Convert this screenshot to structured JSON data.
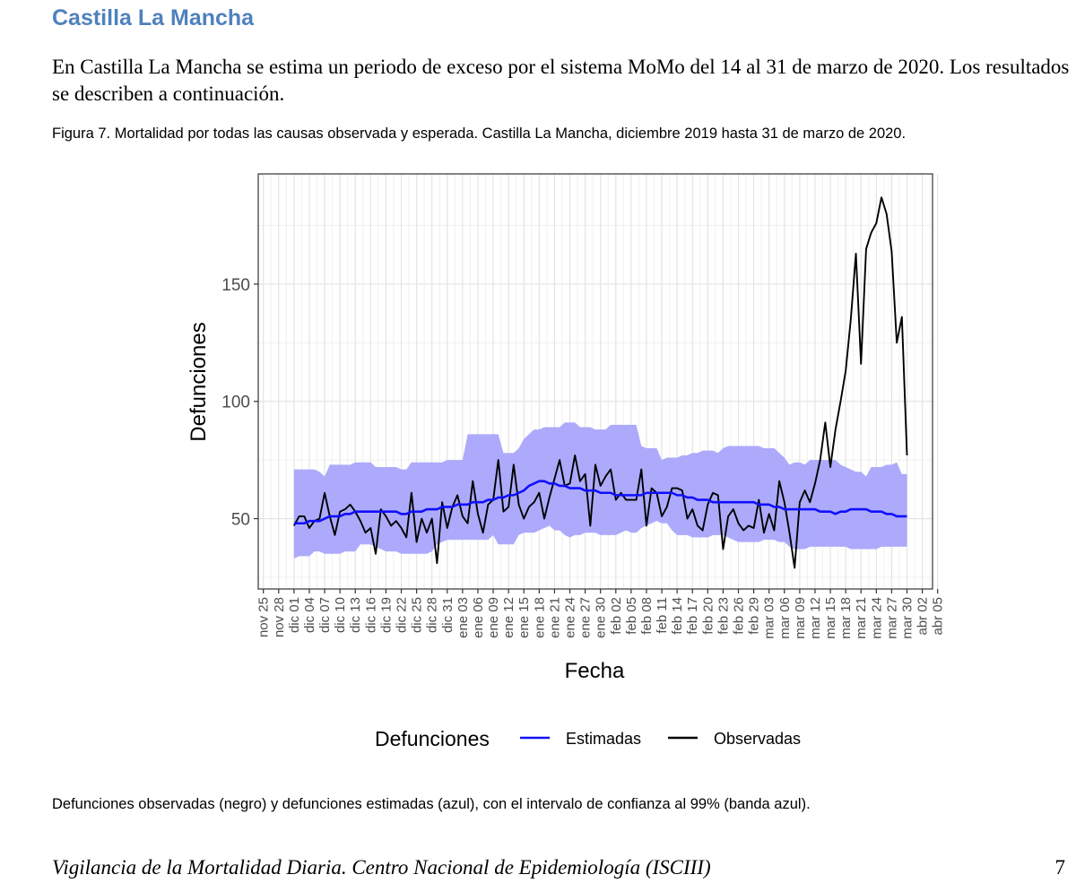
{
  "document": {
    "heading": "Castilla La Mancha",
    "paragraph": "En Castilla La Mancha se estima un periodo de exceso por el sistema MoMo del 14 al 31 de marzo de 2020. Los resultados se describen a continuación.",
    "figure_caption": "Figura 7. Mortalidad por todas las causas observada y esperada. Castilla La Mancha, diciembre 2019 hasta 31 de marzo de 2020.",
    "note": "Defunciones observadas (negro) y defunciones estimadas (azul), con el intervalo de confianza al 99% (banda azul).",
    "footer": "Vigilancia de la Mortalidad Diaria. Centro Nacional de Epidemiología (ISCIII)",
    "page_number": "7"
  },
  "chart_data": {
    "type": "line",
    "title": "",
    "xlabel": "Fecha",
    "ylabel": "Defunciones",
    "ylim": [
      20,
      197
    ],
    "yticks": [
      50,
      100,
      150
    ],
    "x_start_date": "2019-11-25",
    "x_day_range": [
      -1,
      131
    ],
    "x_tick_labels": [
      "nov 25",
      "nov 28",
      "dic 01",
      "dic 04",
      "dic 07",
      "dic 10",
      "dic 13",
      "dic 16",
      "dic 19",
      "dic 22",
      "dic 25",
      "dic 28",
      "dic 31",
      "ene 03",
      "ene 06",
      "ene 09",
      "ene 12",
      "ene 15",
      "ene 18",
      "ene 21",
      "ene 24",
      "ene 27",
      "ene 30",
      "feb 02",
      "feb 05",
      "feb 08",
      "feb 11",
      "feb 14",
      "feb 17",
      "feb 20",
      "feb 23",
      "feb 26",
      "feb 29",
      "mar 03",
      "mar 06",
      "mar 09",
      "mar 12",
      "mar 15",
      "mar 18",
      "mar 21",
      "mar 24",
      "mar 27",
      "mar 30",
      "abr 02",
      "abr 05"
    ],
    "x_tick_step_days": 3,
    "grid": true,
    "legend_position": "bottom",
    "legend": {
      "title": "Defunciones",
      "entries": [
        "Estimadas",
        "Observadas"
      ]
    },
    "colors": {
      "estimated": "#1010ff",
      "observed": "#000000",
      "band": "#a9a5fb",
      "panel_border": "#333333",
      "grid_major": "#e4e4e4",
      "grid_minor": "#f0f0f0"
    },
    "series": [
      {
        "name": "Observadas",
        "start_day": 6,
        "values": [
          47,
          51,
          51,
          46,
          49,
          50,
          61,
          51,
          43,
          53,
          54,
          56,
          53,
          49,
          44,
          46,
          35,
          54,
          51,
          47,
          49,
          46,
          42,
          61,
          40,
          50,
          44,
          50,
          31,
          57,
          46,
          55,
          60,
          51,
          48,
          66,
          52,
          44,
          56,
          58,
          75,
          53,
          55,
          73,
          56,
          50,
          55,
          57,
          61,
          50,
          59,
          67,
          75,
          64,
          65,
          77,
          66,
          69,
          47,
          73,
          64,
          68,
          71,
          58,
          61,
          58,
          58,
          58,
          71,
          47,
          63,
          61,
          51,
          55,
          63,
          63,
          62,
          50,
          54,
          47,
          45,
          56,
          61,
          60,
          37,
          51,
          54,
          48,
          45,
          47,
          46,
          58,
          44,
          52,
          45,
          66,
          57,
          44,
          29,
          57,
          62,
          57,
          65,
          75,
          91,
          72,
          88,
          100,
          113,
          135,
          163,
          116,
          165,
          172,
          176,
          187,
          180,
          164,
          125,
          136,
          77
        ]
      },
      {
        "name": "Estimadas",
        "start_day": 6,
        "values": [
          48,
          48,
          48,
          49,
          49,
          49,
          50,
          51,
          51,
          51,
          52,
          52,
          53,
          53,
          53,
          53,
          53,
          53,
          53,
          53,
          53,
          52,
          52,
          53,
          53,
          53,
          54,
          54,
          54,
          55,
          55,
          55,
          56,
          56,
          56,
          57,
          57,
          57,
          58,
          58,
          59,
          59,
          60,
          60,
          61,
          62,
          64,
          65,
          66,
          66,
          65,
          65,
          64,
          64,
          63,
          63,
          63,
          62,
          62,
          62,
          61,
          61,
          61,
          60,
          60,
          60,
          60,
          60,
          60,
          61,
          61,
          61,
          61,
          61,
          61,
          60,
          60,
          59,
          59,
          58,
          58,
          58,
          57,
          57,
          57,
          57,
          57,
          57,
          57,
          57,
          57,
          56,
          56,
          56,
          55,
          55,
          54,
          54,
          54,
          54,
          54,
          54,
          54,
          53,
          53,
          53,
          52,
          53,
          53,
          54,
          54,
          54,
          54,
          53,
          53,
          53,
          52,
          52,
          51,
          51,
          51
        ]
      }
    ],
    "confidence_band": {
      "name": "Intervalo de confianza al 99%",
      "start_day": 6,
      "upper": [
        71,
        71,
        71,
        71,
        71,
        70,
        68,
        73,
        73,
        73,
        73,
        73,
        74,
        74,
        74,
        74,
        72,
        72,
        72,
        72,
        72,
        71,
        71,
        74,
        74,
        74,
        74,
        74,
        74,
        74,
        75,
        75,
        75,
        75,
        86,
        86,
        86,
        86,
        86,
        86,
        86,
        78,
        78,
        78,
        80,
        84,
        86,
        88,
        88,
        89,
        89,
        89,
        89,
        91,
        91,
        91,
        89,
        89,
        89,
        88,
        88,
        88,
        90,
        90,
        90,
        90,
        90,
        90,
        81,
        80,
        80,
        80,
        75,
        76,
        76,
        76,
        77,
        77,
        78,
        78,
        79,
        79,
        79,
        78,
        80,
        81,
        81,
        81,
        81,
        81,
        81,
        81,
        80,
        80,
        80,
        78,
        76,
        73,
        74,
        74,
        73,
        75,
        75,
        75,
        75,
        75,
        75,
        73,
        72,
        71,
        70,
        70,
        68,
        72,
        72,
        72,
        73,
        73,
        74,
        69,
        69
      ],
      "lower": [
        33,
        34,
        34,
        34,
        36,
        36,
        35,
        35,
        35,
        35,
        36,
        36,
        36,
        39,
        39,
        39,
        38,
        37,
        36,
        36,
        36,
        35,
        35,
        35,
        35,
        35,
        35,
        36,
        39,
        40,
        41,
        41,
        41,
        41,
        41,
        41,
        41,
        41,
        41,
        43,
        39,
        39,
        39,
        39,
        43,
        44,
        44,
        44,
        45,
        46,
        47,
        45,
        45,
        43,
        42,
        43,
        43,
        44,
        44,
        44,
        43,
        43,
        43,
        43,
        44,
        45,
        44,
        44,
        46,
        47,
        48,
        49,
        48,
        48,
        45,
        43,
        43,
        43,
        42,
        42,
        42,
        42,
        43,
        43,
        43,
        42,
        41,
        40,
        40,
        40,
        40,
        40,
        41,
        41,
        41,
        40,
        40,
        38,
        37,
        37,
        37,
        38,
        38,
        38,
        38,
        38,
        38,
        38,
        38,
        37,
        37,
        37,
        37,
        37,
        37,
        38,
        38,
        38,
        38,
        38,
        38
      ]
    }
  }
}
